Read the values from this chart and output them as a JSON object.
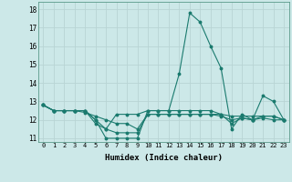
{
  "title": "",
  "xlabel": "Humidex (Indice chaleur)",
  "ylabel": "",
  "background_color": "#cce8e8",
  "grid_color": "#b8d4d4",
  "line_color": "#1a7a6e",
  "xlim": [
    -0.5,
    23.5
  ],
  "ylim": [
    10.8,
    18.4
  ],
  "yticks": [
    11,
    12,
    13,
    14,
    15,
    16,
    17,
    18
  ],
  "xticks": [
    0,
    1,
    2,
    3,
    4,
    5,
    6,
    7,
    8,
    9,
    10,
    11,
    12,
    13,
    14,
    15,
    16,
    17,
    18,
    19,
    20,
    21,
    22,
    23
  ],
  "series": [
    [
      12.8,
      12.5,
      12.5,
      12.5,
      12.5,
      12.0,
      11.0,
      11.0,
      11.0,
      11.0,
      12.5,
      12.5,
      12.5,
      14.5,
      17.8,
      17.3,
      16.0,
      14.8,
      11.5,
      12.3,
      12.0,
      13.3,
      13.0,
      12.0
    ],
    [
      12.8,
      12.5,
      12.5,
      12.5,
      12.5,
      12.0,
      11.5,
      12.3,
      12.3,
      12.3,
      12.5,
      12.5,
      12.5,
      12.5,
      12.5,
      12.5,
      12.5,
      12.3,
      12.2,
      12.2,
      12.2,
      12.2,
      12.2,
      12.0
    ],
    [
      12.8,
      12.5,
      12.5,
      12.5,
      12.5,
      11.8,
      11.5,
      11.3,
      11.3,
      11.3,
      12.3,
      12.3,
      12.3,
      12.3,
      12.3,
      12.3,
      12.3,
      12.3,
      11.8,
      12.1,
      12.0,
      12.2,
      12.2,
      12.0
    ],
    [
      12.8,
      12.5,
      12.5,
      12.5,
      12.4,
      12.2,
      12.0,
      11.8,
      11.8,
      11.5,
      12.3,
      12.3,
      12.3,
      12.3,
      12.3,
      12.3,
      12.3,
      12.2,
      12.0,
      12.1,
      12.0,
      12.1,
      12.0,
      12.0
    ]
  ]
}
